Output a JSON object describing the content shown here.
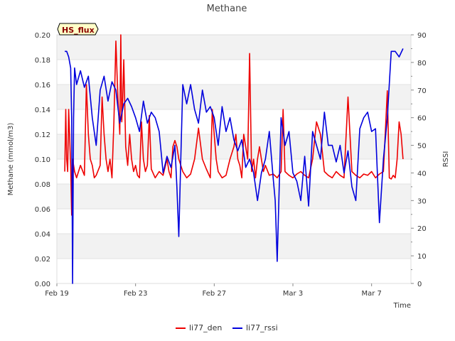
{
  "chart_data": {
    "type": "line",
    "title": "Methane",
    "badge": "HS_flux",
    "xlabel": "Time",
    "ylabel_left": "Methane (mmol/m3)",
    "ylabel_right": "RSSI",
    "ylim_left": [
      0,
      0.2
    ],
    "ylim_right": [
      0,
      90
    ],
    "xlim_days": [
      0,
      18
    ],
    "left_ticks": [
      "0.00",
      "0.02",
      "0.04",
      "0.06",
      "0.08",
      "0.10",
      "0.12",
      "0.14",
      "0.16",
      "0.18",
      "0.20"
    ],
    "right_ticks": [
      "0",
      "10",
      "20",
      "30",
      "40",
      "50",
      "60",
      "70",
      "80",
      "90"
    ],
    "x_ticks": [
      {
        "label": "Feb 19",
        "day": 0
      },
      {
        "label": "Feb 23",
        "day": 4
      },
      {
        "label": "Feb 27",
        "day": 8
      },
      {
        "label": "Mar 3",
        "day": 12
      },
      {
        "label": "Mar 7",
        "day": 16
      }
    ],
    "series": [
      {
        "name": "li77_den",
        "axis": "left",
        "color": "#ee0000",
        "x": [
          0.4,
          0.45,
          0.5,
          0.55,
          0.6,
          0.7,
          0.75,
          0.8,
          0.9,
          1.0,
          1.2,
          1.4,
          1.5,
          1.6,
          1.7,
          1.8,
          1.85,
          1.9,
          2.0,
          2.2,
          2.3,
          2.4,
          2.5,
          2.6,
          2.7,
          2.8,
          2.9,
          3.0,
          3.1,
          3.2,
          3.25,
          3.3,
          3.35,
          3.4,
          3.5,
          3.6,
          3.7,
          3.8,
          3.9,
          4.0,
          4.1,
          4.2,
          4.3,
          4.4,
          4.5,
          4.6,
          4.7,
          4.8,
          5.0,
          5.2,
          5.4,
          5.6,
          5.7,
          5.8,
          5.9,
          6.0,
          6.1,
          6.2,
          6.4,
          6.6,
          6.8,
          7.0,
          7.2,
          7.4,
          7.6,
          7.8,
          7.9,
          8.0,
          8.1,
          8.2,
          8.4,
          8.6,
          8.8,
          9.0,
          9.1,
          9.2,
          9.3,
          9.35,
          9.4,
          9.5,
          9.6,
          9.7,
          9.8,
          9.9,
          10.0,
          10.1,
          10.2,
          10.3,
          10.4,
          10.5,
          10.6,
          10.8,
          11.0,
          11.2,
          11.4,
          11.5,
          11.6,
          11.8,
          12.0,
          12.2,
          12.4,
          12.6,
          12.8,
          13.0,
          13.2,
          13.4,
          13.6,
          13.8,
          14.0,
          14.2,
          14.4,
          14.6,
          14.8,
          15.0,
          15.2,
          15.4,
          15.6,
          15.8,
          16.0,
          16.2,
          16.4,
          16.6,
          16.8,
          16.9,
          17.0,
          17.1,
          17.2,
          17.3,
          17.4,
          17.5,
          17.6
        ],
        "y": [
          0.09,
          0.14,
          0.1,
          0.09,
          0.14,
          0.095,
          0.055,
          0.1,
          0.09,
          0.085,
          0.095,
          0.087,
          0.16,
          0.12,
          0.1,
          0.095,
          0.09,
          0.085,
          0.087,
          0.095,
          0.15,
          0.12,
          0.1,
          0.09,
          0.1,
          0.085,
          0.13,
          0.195,
          0.15,
          0.12,
          0.2,
          0.13,
          0.15,
          0.18,
          0.11,
          0.095,
          0.12,
          0.1,
          0.09,
          0.095,
          0.087,
          0.085,
          0.13,
          0.1,
          0.09,
          0.095,
          0.135,
          0.092,
          0.085,
          0.09,
          0.087,
          0.1,
          0.09,
          0.085,
          0.11,
          0.115,
          0.11,
          0.1,
          0.09,
          0.085,
          0.088,
          0.1,
          0.125,
          0.1,
          0.092,
          0.085,
          0.14,
          0.12,
          0.1,
          0.09,
          0.085,
          0.087,
          0.1,
          0.11,
          0.12,
          0.1,
          0.095,
          0.09,
          0.085,
          0.12,
          0.11,
          0.1,
          0.185,
          0.09,
          0.1,
          0.085,
          0.1,
          0.11,
          0.1,
          0.09,
          0.095,
          0.087,
          0.088,
          0.085,
          0.09,
          0.14,
          0.09,
          0.087,
          0.085,
          0.088,
          0.09,
          0.087,
          0.085,
          0.1,
          0.13,
          0.12,
          0.09,
          0.087,
          0.085,
          0.09,
          0.087,
          0.085,
          0.15,
          0.09,
          0.087,
          0.085,
          0.088,
          0.087,
          0.09,
          0.085,
          0.088,
          0.09,
          0.155,
          0.085,
          0.084,
          0.087,
          0.085,
          0.1,
          0.13,
          0.12,
          0.1
        ]
      },
      {
        "name": "li77_rssi",
        "axis": "right",
        "color": "#0000dd",
        "x": [
          0.4,
          0.5,
          0.6,
          0.7,
          0.75,
          0.8,
          0.85,
          0.9,
          1.0,
          1.2,
          1.4,
          1.6,
          1.8,
          2.0,
          2.2,
          2.4,
          2.6,
          2.8,
          3.0,
          3.2,
          3.4,
          3.6,
          3.8,
          4.0,
          4.2,
          4.4,
          4.6,
          4.8,
          5.0,
          5.2,
          5.4,
          5.6,
          5.8,
          6.0,
          6.1,
          6.2,
          6.3,
          6.4,
          6.6,
          6.8,
          7.0,
          7.2,
          7.4,
          7.6,
          7.8,
          8.0,
          8.2,
          8.4,
          8.6,
          8.8,
          9.0,
          9.2,
          9.4,
          9.6,
          9.8,
          10.0,
          10.2,
          10.4,
          10.6,
          10.8,
          11.0,
          11.1,
          11.2,
          11.4,
          11.6,
          11.8,
          12.0,
          12.2,
          12.4,
          12.6,
          12.8,
          13.0,
          13.2,
          13.4,
          13.6,
          13.8,
          14.0,
          14.2,
          14.4,
          14.6,
          14.8,
          15.0,
          15.2,
          15.4,
          15.6,
          15.8,
          16.0,
          16.2,
          16.4,
          16.6,
          16.8,
          17.0,
          17.2,
          17.4,
          17.6
        ],
        "y": [
          84,
          84,
          82,
          78,
          60,
          0,
          60,
          78,
          72,
          77,
          71,
          75,
          60,
          50,
          70,
          75,
          66,
          73,
          70,
          58,
          65,
          67,
          64,
          60,
          55,
          66,
          58,
          62,
          60,
          55,
          40,
          46,
          42,
          50,
          35,
          17,
          45,
          72,
          65,
          72,
          63,
          58,
          70,
          62,
          64,
          60,
          50,
          64,
          55,
          60,
          52,
          48,
          52,
          42,
          45,
          40,
          30,
          40,
          45,
          55,
          38,
          30,
          8,
          60,
          50,
          55,
          40,
          37,
          30,
          46,
          28,
          55,
          50,
          45,
          62,
          50,
          50,
          44,
          50,
          40,
          48,
          35,
          30,
          56,
          60,
          62,
          55,
          56,
          22,
          45,
          60,
          84,
          84,
          82,
          85
        ]
      }
    ]
  }
}
